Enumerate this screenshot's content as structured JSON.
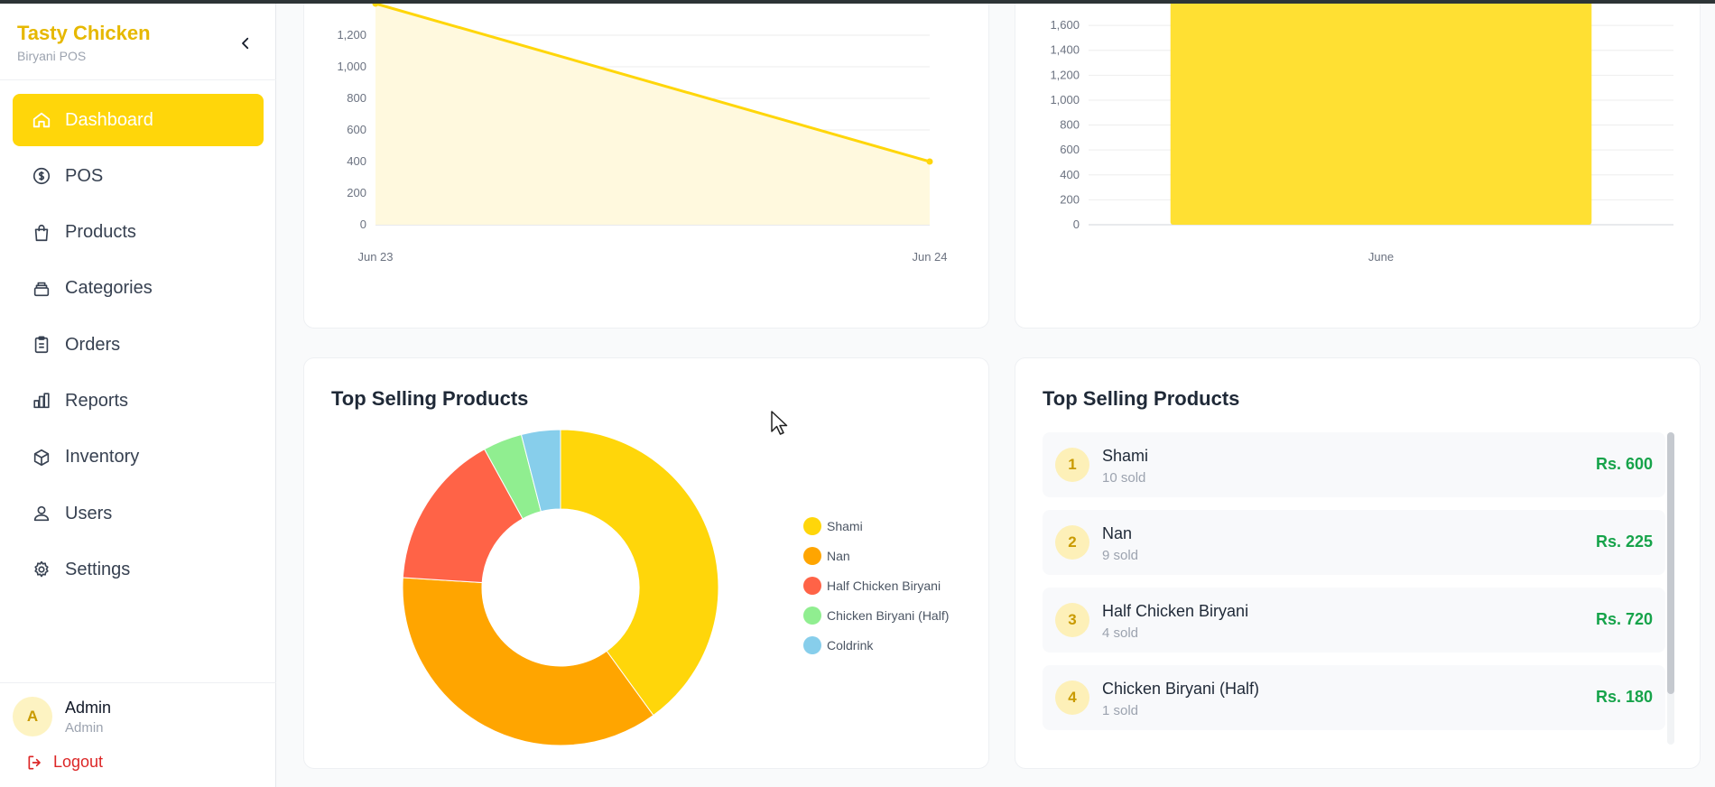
{
  "brand": {
    "name": "Tasty Chicken",
    "subtitle": "Biryani POS"
  },
  "sidebar": {
    "items": [
      {
        "label": "Dashboard",
        "icon": "home-icon",
        "active": true
      },
      {
        "label": "POS",
        "icon": "dollar-circle-icon"
      },
      {
        "label": "Products",
        "icon": "shopping-bag-icon"
      },
      {
        "label": "Categories",
        "icon": "layers-icon"
      },
      {
        "label": "Orders",
        "icon": "clipboard-icon"
      },
      {
        "label": "Reports",
        "icon": "bar-chart-icon"
      },
      {
        "label": "Inventory",
        "icon": "box-icon"
      },
      {
        "label": "Users",
        "icon": "users-icon"
      },
      {
        "label": "Settings",
        "icon": "gear-icon"
      }
    ]
  },
  "user": {
    "initial": "A",
    "name": "Admin",
    "role": "Admin"
  },
  "logout_label": "Logout",
  "colors": {
    "accent": "#ffd60a",
    "brand": "#e6b800",
    "positive": "#16a34a",
    "danger": "#dc2626"
  },
  "chart_data": [
    {
      "type": "area",
      "x": [
        "Jun 23",
        "Jun 24"
      ],
      "values": [
        1400,
        400
      ],
      "yticks": [
        0,
        200,
        400,
        600,
        800,
        1000,
        1200
      ],
      "ylim": [
        0,
        1400
      ],
      "grid": true
    },
    {
      "type": "bar",
      "categories": [
        "June"
      ],
      "values": [
        1800
      ],
      "yticks": [
        0,
        200,
        400,
        600,
        800,
        1000,
        1200,
        1400,
        1600
      ],
      "ylim": [
        0,
        1800
      ],
      "grid": true
    },
    {
      "type": "pie",
      "title": "Top Selling Products",
      "labels": [
        "Shami",
        "Nan",
        "Half Chicken Biryani",
        "Chicken Biryani (Half)",
        "Coldrink"
      ],
      "values": [
        10,
        9,
        4,
        1,
        1
      ],
      "colors": [
        "#ffd60a",
        "#ffa500",
        "#ff6347",
        "#90ee90",
        "#87ceeb"
      ],
      "legend": "right"
    }
  ],
  "top_list": {
    "title": "Top Selling Products",
    "items": [
      {
        "rank": "1",
        "name": "Shami",
        "sold": "10 sold",
        "amount": "Rs. 600"
      },
      {
        "rank": "2",
        "name": "Nan",
        "sold": "9 sold",
        "amount": "Rs. 225"
      },
      {
        "rank": "3",
        "name": "Half Chicken Biryani",
        "sold": "4 sold",
        "amount": "Rs. 720"
      },
      {
        "rank": "4",
        "name": "Chicken Biryani (Half)",
        "sold": "1 sold",
        "amount": "Rs. 180"
      }
    ]
  }
}
